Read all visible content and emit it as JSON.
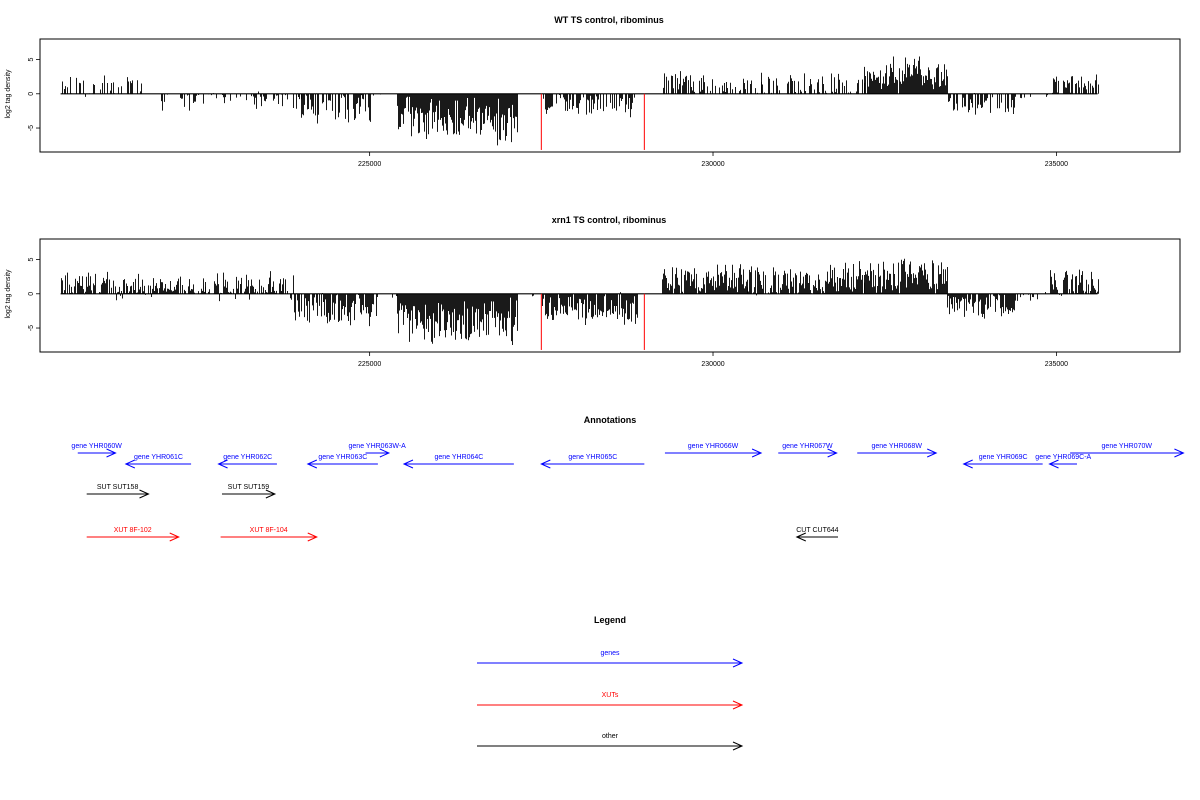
{
  "chart_data": [
    {
      "type": "bar",
      "title": "WT TS control, ribominus",
      "xlabel": "",
      "ylabel": "log2 tag density",
      "xlim": [
        220200,
        236800
      ],
      "ylim": [
        -8.5,
        8
      ],
      "xticks": [
        225000,
        230000,
        235000
      ],
      "yticks": [
        -5,
        0,
        5
      ],
      "grid": false,
      "bar_color": "#000000",
      "highlight_color": "#ff0000",
      "highlights": [
        {
          "x": 227500,
          "value": -8.2
        },
        {
          "x": 229000,
          "value": -8.2
        }
      ],
      "segments": [
        {
          "start": 220500,
          "end": 221800,
          "mean": 1.2,
          "amp": 1.6,
          "density": 0.35
        },
        {
          "start": 221800,
          "end": 222600,
          "mean": -1.0,
          "amp": 1.6,
          "density": 0.4
        },
        {
          "start": 222600,
          "end": 223300,
          "mean": -0.4,
          "amp": 1.0,
          "density": 0.25
        },
        {
          "start": 223300,
          "end": 224000,
          "mean": -1.0,
          "amp": 1.4,
          "density": 0.45
        },
        {
          "start": 224000,
          "end": 225000,
          "mean": -2.2,
          "amp": 2.2,
          "density": 0.6
        },
        {
          "start": 225000,
          "end": 225300,
          "mean": -0.3,
          "amp": 0.6,
          "density": 0.15
        },
        {
          "start": 225400,
          "end": 227150,
          "mean": -3.8,
          "amp": 3.2,
          "density": 1.0
        },
        {
          "start": 227150,
          "end": 227450,
          "mean": -0.2,
          "amp": 0.4,
          "density": 0.05
        },
        {
          "start": 227500,
          "end": 228900,
          "mean": -1.6,
          "amp": 1.8,
          "density": 0.55
        },
        {
          "start": 229250,
          "end": 229700,
          "mean": 2.0,
          "amp": 1.8,
          "density": 0.7
        },
        {
          "start": 229700,
          "end": 230700,
          "mean": 1.4,
          "amp": 1.8,
          "density": 0.55
        },
        {
          "start": 230700,
          "end": 232200,
          "mean": 1.2,
          "amp": 1.9,
          "density": 0.55
        },
        {
          "start": 232200,
          "end": 233400,
          "mean": 3.0,
          "amp": 2.4,
          "density": 0.95
        },
        {
          "start": 233400,
          "end": 234400,
          "mean": -1.5,
          "amp": 1.8,
          "density": 0.65
        },
        {
          "start": 234400,
          "end": 234900,
          "mean": -0.4,
          "amp": 0.8,
          "density": 0.25
        },
        {
          "start": 234900,
          "end": 235600,
          "mean": 1.2,
          "amp": 1.8,
          "density": 0.6
        }
      ]
    },
    {
      "type": "bar",
      "title": "xrn1 TS control, ribominus",
      "xlabel": "",
      "ylabel": "log2 tag density",
      "xlim": [
        220200,
        236800
      ],
      "ylim": [
        -8.5,
        8
      ],
      "xticks": [
        225000,
        230000,
        235000
      ],
      "yticks": [
        -5,
        0,
        5
      ],
      "grid": false,
      "bar_color": "#000000",
      "highlight_color": "#ff0000",
      "highlights": [
        {
          "x": 227500,
          "value": -8.2
        },
        {
          "x": 229000,
          "value": -8.2
        }
      ],
      "segments": [
        {
          "start": 220500,
          "end": 221200,
          "mean": 1.6,
          "amp": 1.8,
          "density": 0.8
        },
        {
          "start": 221200,
          "end": 222600,
          "mean": 1.0,
          "amp": 2.0,
          "density": 0.85
        },
        {
          "start": 222600,
          "end": 223900,
          "mean": 0.8,
          "amp": 2.2,
          "density": 0.85
        },
        {
          "start": 223900,
          "end": 225100,
          "mean": -2.2,
          "amp": 2.4,
          "density": 0.9
        },
        {
          "start": 225100,
          "end": 225400,
          "mean": -0.3,
          "amp": 0.6,
          "density": 0.2
        },
        {
          "start": 225400,
          "end": 227150,
          "mean": -4.2,
          "amp": 3.4,
          "density": 1.0
        },
        {
          "start": 227150,
          "end": 227450,
          "mean": -0.2,
          "amp": 0.4,
          "density": 0.05
        },
        {
          "start": 227500,
          "end": 228900,
          "mean": -2.2,
          "amp": 2.4,
          "density": 0.95
        },
        {
          "start": 229250,
          "end": 230500,
          "mean": 2.2,
          "amp": 2.2,
          "density": 0.95
        },
        {
          "start": 230500,
          "end": 232200,
          "mean": 1.8,
          "amp": 2.6,
          "density": 0.95
        },
        {
          "start": 232200,
          "end": 233400,
          "mean": 2.6,
          "amp": 2.6,
          "density": 1.0
        },
        {
          "start": 233400,
          "end": 234400,
          "mean": -1.8,
          "amp": 2.0,
          "density": 0.9
        },
        {
          "start": 234400,
          "end": 234900,
          "mean": -0.4,
          "amp": 0.8,
          "density": 0.3
        },
        {
          "start": 234900,
          "end": 235600,
          "mean": 1.6,
          "amp": 2.0,
          "density": 0.85
        }
      ]
    }
  ],
  "annotations": {
    "title": "Annotations",
    "features": [
      {
        "label": "gene YHR060W",
        "type": "gene",
        "strand": "+",
        "start": 220750,
        "end": 221300,
        "row": 0
      },
      {
        "label": "gene YHR061C",
        "type": "gene",
        "strand": "-",
        "start": 221450,
        "end": 222400,
        "row": 1
      },
      {
        "label": "gene YHR062C",
        "type": "gene",
        "strand": "-",
        "start": 222800,
        "end": 223650,
        "row": 1
      },
      {
        "label": "gene YHR063C",
        "type": "gene",
        "strand": "-",
        "start": 224100,
        "end": 225120,
        "row": 1
      },
      {
        "label": "gene YHR063W-A",
        "type": "gene",
        "strand": "+",
        "start": 224940,
        "end": 225280,
        "row": 0
      },
      {
        "label": "gene YHR064C",
        "type": "gene",
        "strand": "-",
        "start": 225500,
        "end": 227100,
        "row": 1
      },
      {
        "label": "gene YHR065C",
        "type": "gene",
        "strand": "-",
        "start": 227500,
        "end": 229000,
        "row": 1
      },
      {
        "label": "gene YHR066W",
        "type": "gene",
        "strand": "+",
        "start": 229300,
        "end": 230700,
        "row": 0
      },
      {
        "label": "gene YHR067W",
        "type": "gene",
        "strand": "+",
        "start": 230950,
        "end": 231800,
        "row": 0
      },
      {
        "label": "gene YHR068W",
        "type": "gene",
        "strand": "+",
        "start": 232100,
        "end": 233250,
        "row": 0
      },
      {
        "label": "gene YHR069C",
        "type": "gene",
        "strand": "-",
        "start": 233650,
        "end": 234800,
        "row": 1
      },
      {
        "label": "gene YHR069C-A",
        "type": "gene",
        "strand": "-",
        "start": 234900,
        "end": 235300,
        "row": 1
      },
      {
        "label": "gene YHR070W",
        "type": "gene",
        "strand": "+",
        "start": 235200,
        "end": 236850,
        "row": 0
      },
      {
        "label": "SUT SUT158",
        "type": "other",
        "strand": "+",
        "start": 220880,
        "end": 221780,
        "row": 2
      },
      {
        "label": "SUT SUT159",
        "type": "other",
        "strand": "+",
        "start": 222850,
        "end": 223620,
        "row": 2
      },
      {
        "label": "XUT 8F-102",
        "type": "xut",
        "strand": "+",
        "start": 220880,
        "end": 222220,
        "row": 3
      },
      {
        "label": "XUT 8F-104",
        "type": "xut",
        "strand": "+",
        "start": 222830,
        "end": 224230,
        "row": 3
      },
      {
        "label": "CUT CUT644",
        "type": "other",
        "strand": "-",
        "start": 231220,
        "end": 231820,
        "row": 3
      }
    ]
  },
  "legend": {
    "title": "Legend",
    "entries": [
      {
        "label": "genes",
        "type": "gene"
      },
      {
        "label": "XUTs",
        "type": "xut"
      },
      {
        "label": "other",
        "type": "other"
      }
    ]
  },
  "colors": {
    "gene": "#0000ff",
    "xut": "#ff0000",
    "other": "#000000"
  }
}
